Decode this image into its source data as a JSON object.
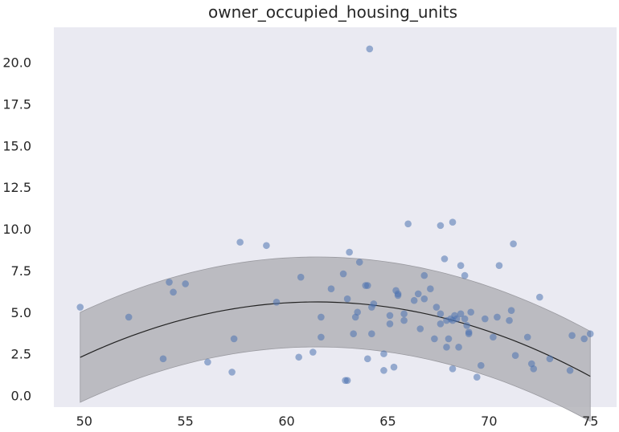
{
  "chart_data": {
    "type": "scatter",
    "title": "owner_occupied_housing_units",
    "xlabel": "",
    "ylabel": "",
    "xlim": [
      48.5,
      76.3
    ],
    "ylim": [
      -0.7,
      22.1
    ],
    "x_ticks": [
      50,
      55,
      60,
      65,
      70,
      75
    ],
    "x_tick_labels": [
      "50",
      "55",
      "60",
      "65",
      "70",
      "75"
    ],
    "y_ticks": [
      0.0,
      2.5,
      5.0,
      7.5,
      10.0,
      12.5,
      15.0,
      17.5,
      20.0
    ],
    "y_tick_labels": [
      "0.0",
      "2.5",
      "5.0",
      "7.5",
      "10.0",
      "12.5",
      "15.0",
      "17.5",
      "20.0"
    ],
    "grid": false,
    "background": "#eaeaf2",
    "point_color": "#4c72b0",
    "fit_line_color": "#222222",
    "band_color": "#b3b3b8",
    "points": [
      [
        49.8,
        5.3
      ],
      [
        52.2,
        4.7
      ],
      [
        53.9,
        2.2
      ],
      [
        54.2,
        6.8
      ],
      [
        54.4,
        6.2
      ],
      [
        55.0,
        6.7
      ],
      [
        56.1,
        2.0
      ],
      [
        57.3,
        1.4
      ],
      [
        57.4,
        3.4
      ],
      [
        57.7,
        9.2
      ],
      [
        59.0,
        9.0
      ],
      [
        59.5,
        5.6
      ],
      [
        60.6,
        2.3
      ],
      [
        60.7,
        7.1
      ],
      [
        61.3,
        2.6
      ],
      [
        61.7,
        4.7
      ],
      [
        61.7,
        3.5
      ],
      [
        62.2,
        6.4
      ],
      [
        62.8,
        7.3
      ],
      [
        63.0,
        5.8
      ],
      [
        62.9,
        0.9
      ],
      [
        63.0,
        0.9
      ],
      [
        63.1,
        8.6
      ],
      [
        63.3,
        3.7
      ],
      [
        63.4,
        4.7
      ],
      [
        63.5,
        5.0
      ],
      [
        63.6,
        8.0
      ],
      [
        63.9,
        6.6
      ],
      [
        64.0,
        6.6
      ],
      [
        64.0,
        2.2
      ],
      [
        64.2,
        5.3
      ],
      [
        64.2,
        3.7
      ],
      [
        64.3,
        5.5
      ],
      [
        64.1,
        20.8
      ],
      [
        64.8,
        2.5
      ],
      [
        64.8,
        1.5
      ],
      [
        65.1,
        4.8
      ],
      [
        65.1,
        4.3
      ],
      [
        65.3,
        1.7
      ],
      [
        65.4,
        6.3
      ],
      [
        65.5,
        6.1
      ],
      [
        65.5,
        6.0
      ],
      [
        65.8,
        4.5
      ],
      [
        65.8,
        4.9
      ],
      [
        66.0,
        10.3
      ],
      [
        66.3,
        5.7
      ],
      [
        66.5,
        6.1
      ],
      [
        66.6,
        4.0
      ],
      [
        66.8,
        5.8
      ],
      [
        66.8,
        7.2
      ],
      [
        67.1,
        6.4
      ],
      [
        67.3,
        3.4
      ],
      [
        67.4,
        5.3
      ],
      [
        67.6,
        10.2
      ],
      [
        67.6,
        4.9
      ],
      [
        67.6,
        4.3
      ],
      [
        67.8,
        8.2
      ],
      [
        67.9,
        2.9
      ],
      [
        67.9,
        4.5
      ],
      [
        68.0,
        3.4
      ],
      [
        68.1,
        4.6
      ],
      [
        68.2,
        4.5
      ],
      [
        68.2,
        10.4
      ],
      [
        68.2,
        1.6
      ],
      [
        68.3,
        4.8
      ],
      [
        68.4,
        4.6
      ],
      [
        68.5,
        2.9
      ],
      [
        68.6,
        4.9
      ],
      [
        68.6,
        7.8
      ],
      [
        68.8,
        7.2
      ],
      [
        68.8,
        4.6
      ],
      [
        68.9,
        4.2
      ],
      [
        69.0,
        3.8
      ],
      [
        69.0,
        3.7
      ],
      [
        69.1,
        5.0
      ],
      [
        69.4,
        1.1
      ],
      [
        69.6,
        1.8
      ],
      [
        69.8,
        4.6
      ],
      [
        70.2,
        3.5
      ],
      [
        70.4,
        4.7
      ],
      [
        70.5,
        7.8
      ],
      [
        71.0,
        4.5
      ],
      [
        71.1,
        5.1
      ],
      [
        71.2,
        9.1
      ],
      [
        71.3,
        2.4
      ],
      [
        71.9,
        3.5
      ],
      [
        72.1,
        1.9
      ],
      [
        72.2,
        1.6
      ],
      [
        72.5,
        5.9
      ],
      [
        73.0,
        2.2
      ],
      [
        74.0,
        1.5
      ],
      [
        74.1,
        3.6
      ],
      [
        74.7,
        3.4
      ],
      [
        75.0,
        3.7
      ]
    ],
    "fit": {
      "x_range": [
        49.8,
        75.0
      ],
      "quadratic_coefficients_desc": [
        -0.0244,
        3.0,
        -86.6
      ],
      "band_half_width": 2.7
    }
  }
}
